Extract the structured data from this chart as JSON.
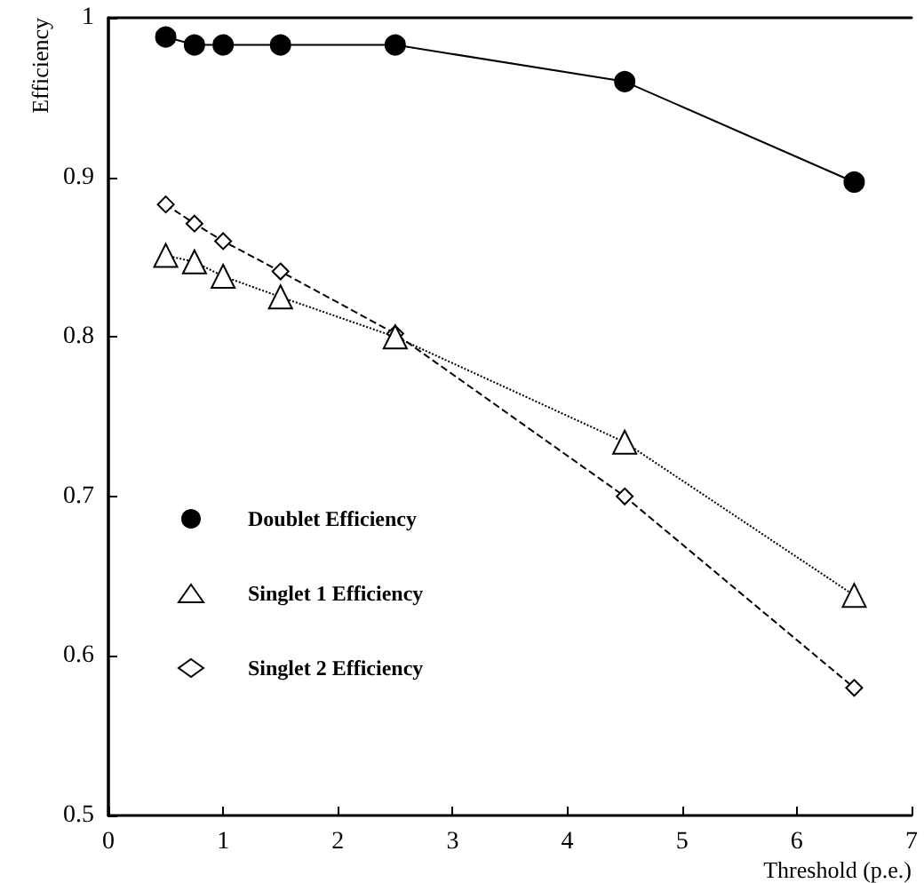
{
  "chart_data": {
    "type": "line",
    "xlabel": "Threshold (p.e.)",
    "ylabel": "Efficiency",
    "xlim": [
      0,
      7
    ],
    "xticks": [
      0,
      1,
      2,
      3,
      4,
      5,
      6,
      7
    ],
    "ylim": [
      0.5,
      1
    ],
    "yticks": [
      0.5,
      0.6,
      0.7,
      0.8,
      0.9,
      1
    ],
    "grid": false,
    "legend": "bottom left",
    "series": [
      {
        "name": "Doublet Efficiency",
        "color": "#000000",
        "marker": "circle",
        "line_style": "solid",
        "x": [
          0.5,
          0.75,
          1,
          1.5,
          2.5,
          4.5,
          6.5
        ],
        "values": [
          0.988,
          0.983,
          0.983,
          0.983,
          0.983,
          0.96,
          0.897
        ]
      },
      {
        "name": "Singlet 1 Efficiency",
        "color": "#000000",
        "marker": "triangle",
        "line_style": "dotted",
        "x": [
          0.5,
          0.75,
          1,
          1.5,
          2.5,
          4.5,
          6.5
        ],
        "values": [
          0.851,
          0.847,
          0.838,
          0.825,
          0.8,
          0.734,
          0.638
        ]
      },
      {
        "name": "Singlet 2 Efficiency",
        "color": "#000000",
        "marker": "diamond",
        "line_style": "dashed",
        "x": [
          0.5,
          0.75,
          1,
          1.5,
          2.5,
          4.5,
          6.5
        ],
        "values": [
          0.883,
          0.871,
          0.86,
          0.841,
          0.802,
          0.7,
          0.58
        ]
      }
    ]
  }
}
